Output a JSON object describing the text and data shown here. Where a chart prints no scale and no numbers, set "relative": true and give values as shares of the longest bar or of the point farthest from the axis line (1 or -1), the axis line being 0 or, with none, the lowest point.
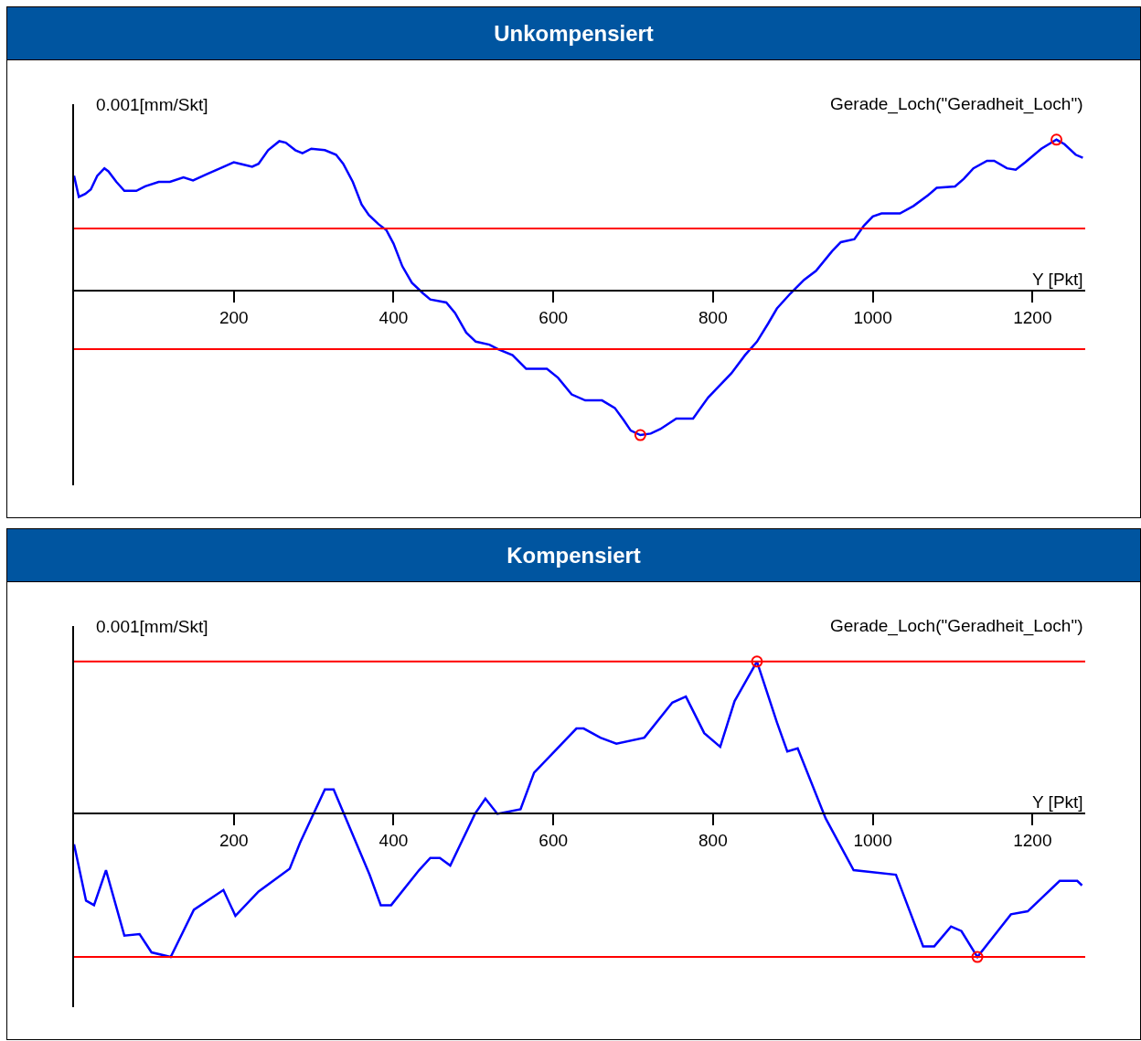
{
  "chart_data": [
    {
      "type": "line",
      "title": "Unkompensiert",
      "xlabel": "Y [Pkt]",
      "ylabel": "0.001[mm/Skt]",
      "annotations": [
        "Gerade_Loch(\"Geradheit_Loch\")"
      ],
      "relative": true,
      "xlim": [
        0,
        1266
      ],
      "xticks": [
        200,
        400,
        600,
        800,
        1000,
        1200
      ],
      "series": [
        {
          "color": "#0000ff",
          "x": [
            0,
            6,
            14,
            21,
            29,
            38,
            43,
            53,
            63,
            78,
            89,
            106,
            120,
            137,
            149,
            166,
            183,
            200,
            208,
            223,
            231,
            243,
            257,
            265,
            277,
            286,
            297,
            314,
            328,
            337,
            349,
            360,
            369,
            381,
            391,
            400,
            411,
            423,
            437,
            446,
            466,
            477,
            491,
            503,
            520,
            531,
            549,
            566,
            592,
            606,
            623,
            640,
            661,
            677,
            688,
            697,
            709,
            722,
            734,
            754,
            775,
            794,
            823,
            840,
            855,
            869,
            880,
            897,
            914,
            929,
            949,
            960,
            977,
            989,
            1000,
            1011,
            1034,
            1051,
            1069,
            1080,
            1103,
            1114,
            1126,
            1143,
            1152,
            1168,
            1179,
            1191,
            1211,
            1230,
            1240,
            1254,
            1263
          ],
          "values": [
            0.76,
            0.62,
            0.64,
            0.67,
            0.76,
            0.81,
            0.79,
            0.72,
            0.66,
            0.66,
            0.69,
            0.72,
            0.72,
            0.75,
            0.73,
            0.77,
            0.81,
            0.85,
            0.84,
            0.82,
            0.84,
            0.93,
            0.99,
            0.98,
            0.93,
            0.91,
            0.94,
            0.93,
            0.9,
            0.84,
            0.72,
            0.57,
            0.5,
            0.44,
            0.4,
            0.31,
            0.16,
            0.05,
            -0.02,
            -0.06,
            -0.08,
            -0.15,
            -0.28,
            -0.34,
            -0.36,
            -0.39,
            -0.43,
            -0.52,
            -0.52,
            -0.58,
            -0.69,
            -0.73,
            -0.73,
            -0.78,
            -0.86,
            -0.93,
            -0.96,
            -0.95,
            -0.92,
            -0.85,
            -0.85,
            -0.71,
            -0.55,
            -0.43,
            -0.34,
            -0.22,
            -0.12,
            -0.02,
            0.07,
            0.13,
            0.26,
            0.32,
            0.34,
            0.43,
            0.49,
            0.51,
            0.51,
            0.56,
            0.63,
            0.68,
            0.69,
            0.74,
            0.81,
            0.86,
            0.86,
            0.81,
            0.8,
            0.85,
            0.94,
            1.0,
            0.97,
            0.9,
            0.88
          ]
        },
        {
          "type": "scatter",
          "marker": "circle",
          "color": "#ff0000",
          "x": [
            709,
            1230
          ],
          "values": [
            -0.96,
            1.0
          ]
        }
      ],
      "ref_lines": [
        {
          "axis": "y",
          "value": 0.41,
          "color": "#ff0000"
        },
        {
          "axis": "y",
          "value": -0.39,
          "color": "#ff0000"
        }
      ]
    },
    {
      "type": "line",
      "title": "Kompensiert",
      "xlabel": "Y [Pkt]",
      "ylabel": "0.001[mm/Skt]",
      "annotations": [
        "Gerade_Loch(\"Geradheit_Loch\")"
      ],
      "relative": true,
      "xlim": [
        0,
        1266
      ],
      "xticks": [
        200,
        400,
        600,
        800,
        1000,
        1200
      ],
      "series": [
        {
          "color": "#0000ff",
          "x": [
            0,
            15,
            25,
            40,
            63,
            82,
            97,
            121,
            150,
            187,
            202,
            231,
            270,
            283,
            314,
            325,
            370,
            384,
            397,
            432,
            446,
            458,
            471,
            502,
            515,
            530,
            559,
            576,
            598,
            629,
            638,
            659,
            679,
            714,
            749,
            766,
            789,
            809,
            827,
            855,
            880,
            893,
            906,
            941,
            976,
            1029,
            1063,
            1077,
            1098,
            1111,
            1131,
            1173,
            1194,
            1234,
            1256,
            1262
          ],
          "values": [
            -0.2,
            -0.57,
            -0.6,
            -0.37,
            -0.8,
            -0.79,
            -0.91,
            -0.94,
            -0.63,
            -0.5,
            -0.67,
            -0.51,
            -0.36,
            -0.19,
            0.16,
            0.16,
            -0.4,
            -0.6,
            -0.6,
            -0.37,
            -0.29,
            -0.29,
            -0.34,
            0,
            0.1,
            0,
            0.03,
            0.27,
            0.39,
            0.56,
            0.56,
            0.5,
            0.46,
            0.5,
            0.73,
            0.77,
            0.53,
            0.44,
            0.74,
            1.0,
            0.6,
            0.41,
            0.43,
            -0.03,
            -0.37,
            -0.4,
            -0.87,
            -0.87,
            -0.74,
            -0.77,
            -0.94,
            -0.66,
            -0.64,
            -0.44,
            -0.44,
            -0.47
          ]
        },
        {
          "type": "scatter",
          "marker": "circle",
          "color": "#ff0000",
          "x": [
            855,
            1131
          ],
          "values": [
            1.0,
            -0.94
          ]
        }
      ],
      "ref_lines": [
        {
          "axis": "y",
          "value": 1.0,
          "color": "#ff0000"
        },
        {
          "axis": "y",
          "value": -0.94,
          "color": "#ff0000"
        }
      ]
    }
  ]
}
